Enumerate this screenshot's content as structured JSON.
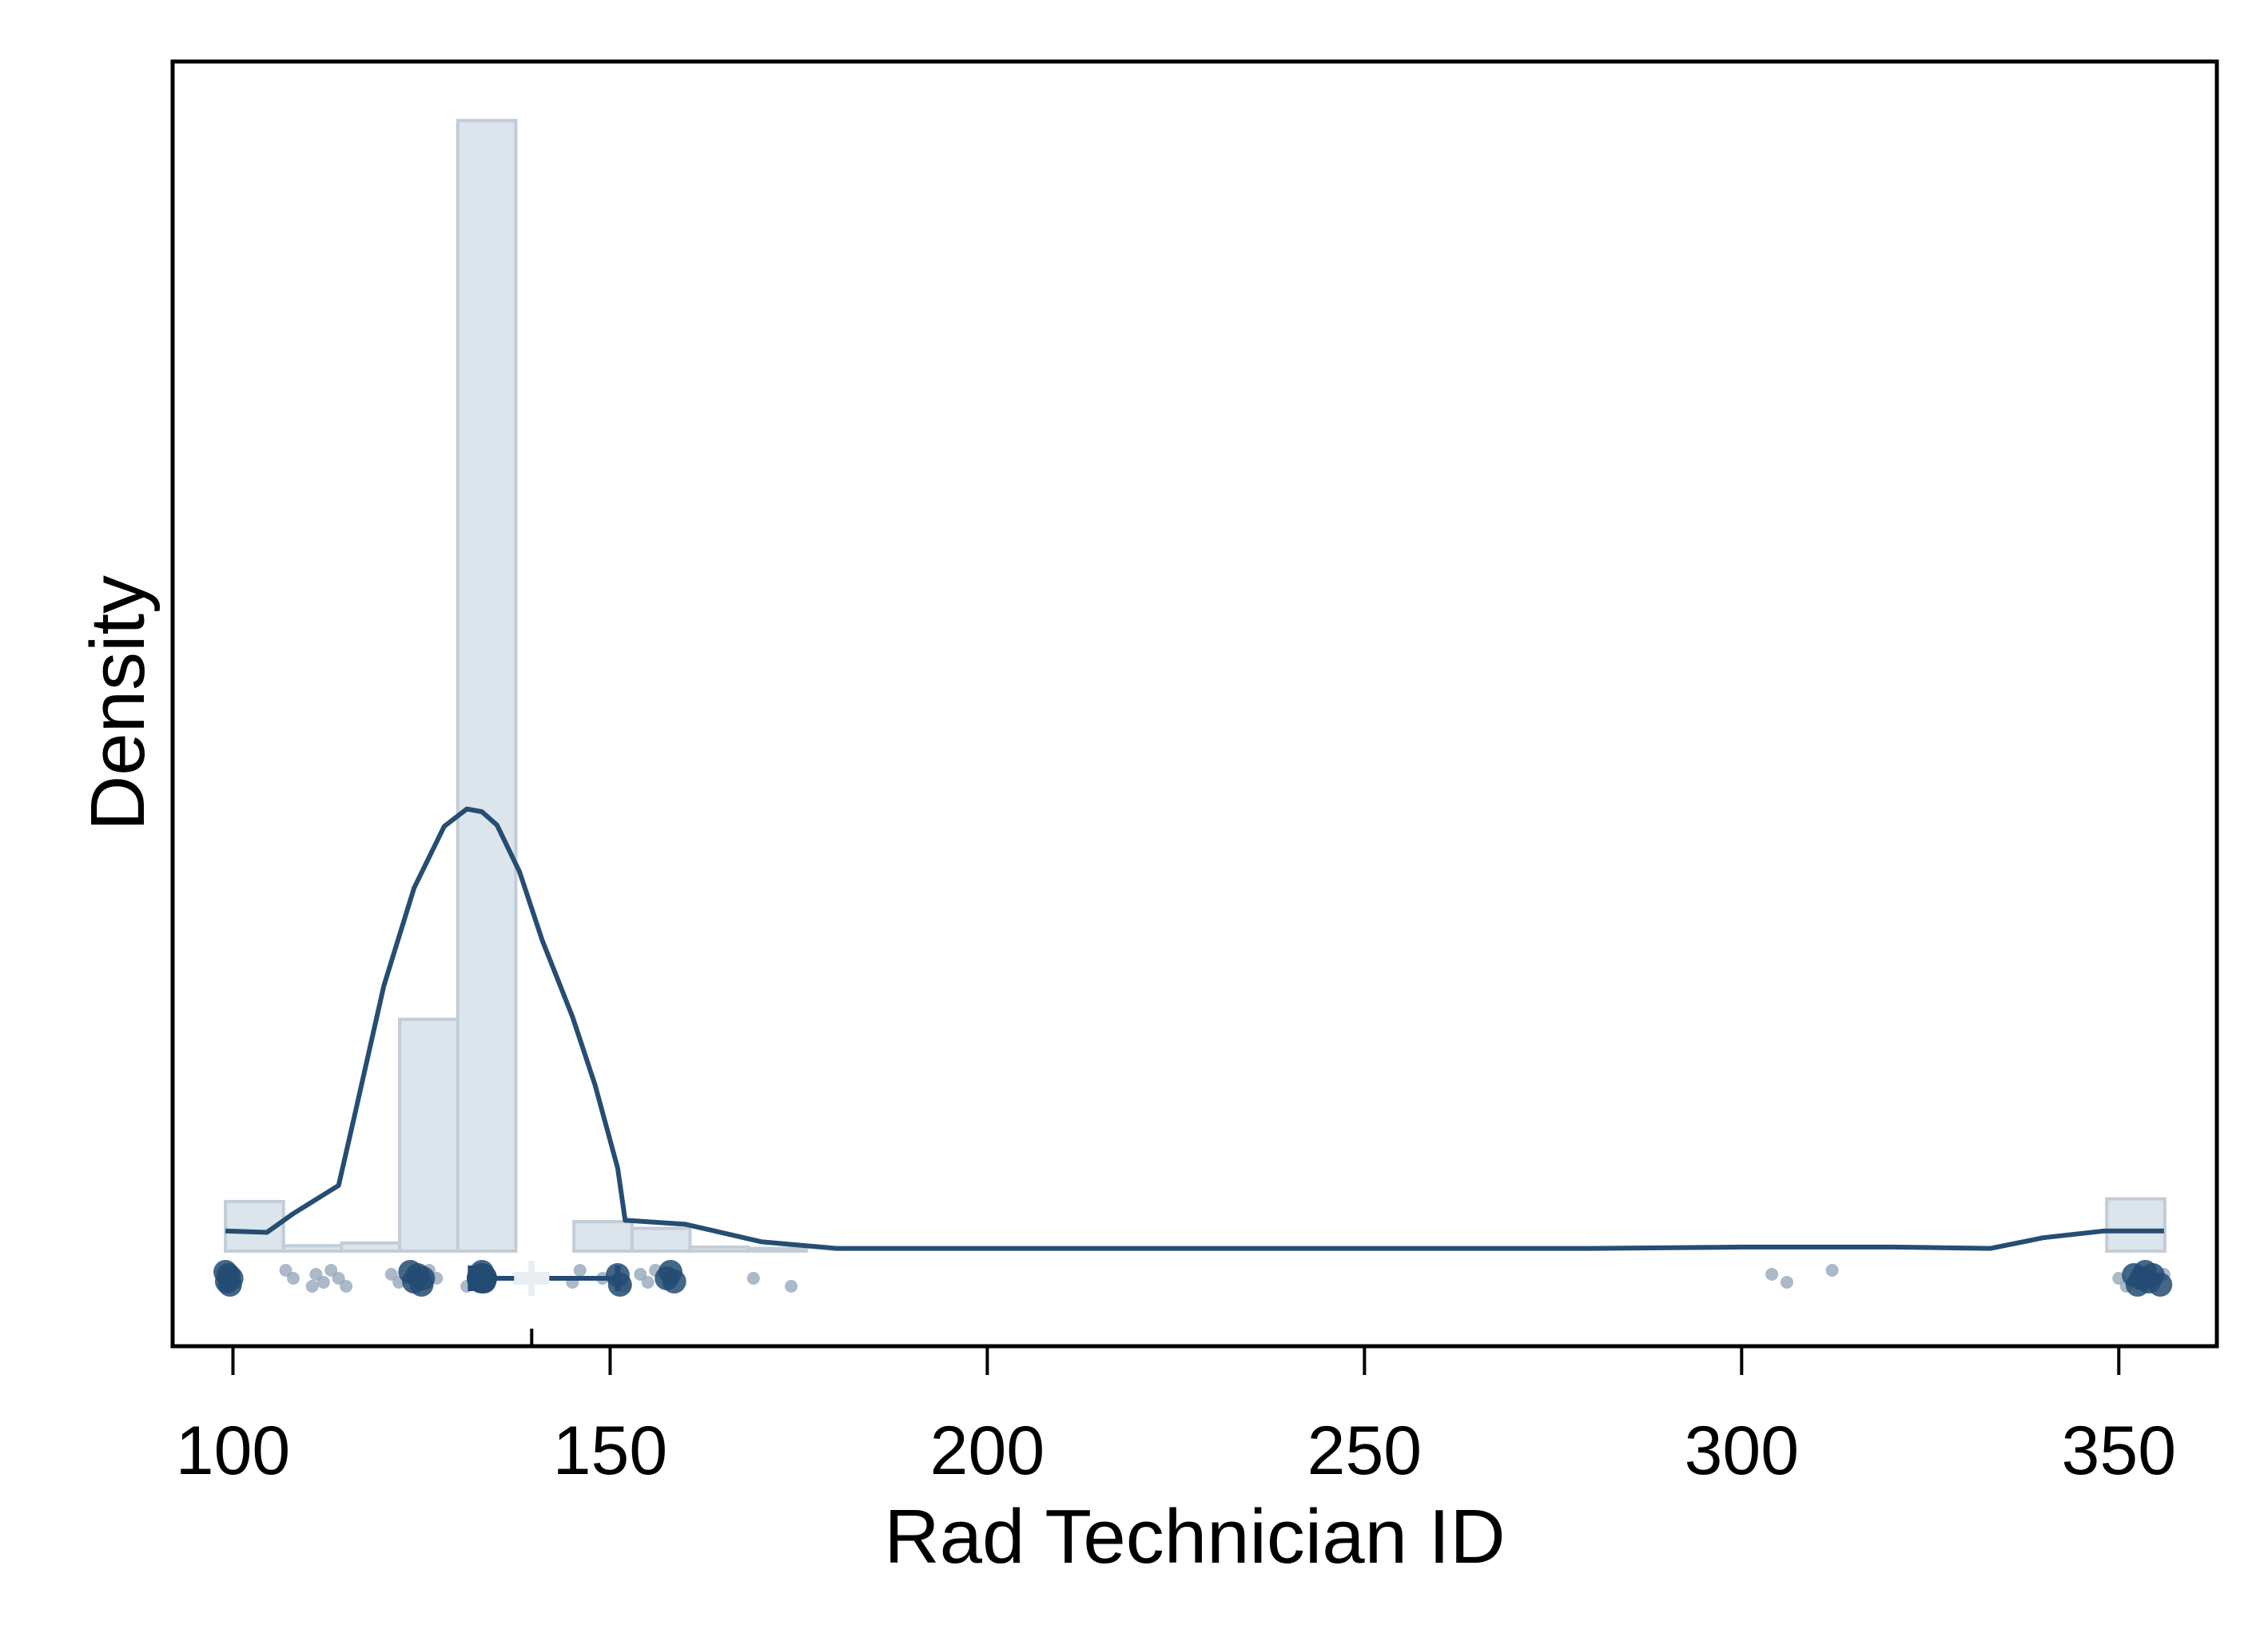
{
  "chart_data": {
    "type": "histogram",
    "title": "",
    "xlabel": "Rad Technician ID",
    "ylabel": "Density",
    "xlim": [
      92,
      363
    ],
    "ylim": [
      -0.0071,
      0.0888
    ],
    "x_ticks": [
      100,
      150,
      200,
      250,
      300,
      350
    ],
    "y_ticks_shown": false,
    "grid": false,
    "legend": "none",
    "colors": {
      "bar_fill": "#dce4ec",
      "bar_stroke": "#c2cdd8",
      "line": "#264d72",
      "point": "#234b73",
      "point_light": "#8fa2b6",
      "box_median": "#e8eef4"
    },
    "histogram": {
      "bins": [
        {
          "x0": 99,
          "x1": 106.7,
          "density": 0.0037
        },
        {
          "x0": 106.7,
          "x1": 114.4,
          "density": 0.0004
        },
        {
          "x0": 114.4,
          "x1": 122.1,
          "density": 0.0006
        },
        {
          "x0": 122.1,
          "x1": 129.8,
          "density": 0.0173
        },
        {
          "x0": 129.8,
          "x1": 137.5,
          "density": 0.0844
        },
        {
          "x0": 137.5,
          "x1": 145.2,
          "density": 0.0
        },
        {
          "x0": 145.2,
          "x1": 152.9,
          "density": 0.0022
        },
        {
          "x0": 152.9,
          "x1": 160.6,
          "density": 0.0017
        },
        {
          "x0": 160.6,
          "x1": 168.3,
          "density": 0.0003
        },
        {
          "x0": 168.3,
          "x1": 176.0,
          "density": 0.0002
        },
        {
          "x0": 348.4,
          "x1": 356.1,
          "density": 0.0039
        }
      ]
    },
    "density_curve": {
      "x": [
        99,
        104.5,
        108,
        112,
        114,
        116,
        120,
        124,
        128,
        131,
        133,
        135,
        138,
        141,
        145,
        148,
        151,
        152,
        160,
        170,
        180,
        200,
        250,
        280,
        300,
        320,
        333,
        340,
        348,
        356
      ],
      "y": [
        0.0015,
        0.0014,
        0.0028,
        0.0042,
        0.0049,
        0.0098,
        0.0198,
        0.0271,
        0.0317,
        0.033,
        0.0328,
        0.0318,
        0.0283,
        0.0232,
        0.0175,
        0.0124,
        0.0062,
        0.0023,
        0.002,
        0.0007,
        0.0002,
        0.0002,
        0.0002,
        0.0002,
        0.0003,
        0.0003,
        0.0002,
        0.001,
        0.0015,
        0.0015
      ]
    },
    "boxplot": {
      "whisker_low": 123,
      "q1": 131.5,
      "median": 139.6,
      "q3": 151,
      "whisker_high": 151,
      "mean": 133
    },
    "points": {
      "dark": [
        99,
        99.2,
        99.4,
        99.6,
        99.8,
        123.5,
        124,
        124.5,
        125,
        125.2,
        133,
        133.3,
        151,
        151.3,
        157.5,
        158,
        158.5,
        352,
        352.5,
        353,
        353.5,
        354,
        354.5,
        355.5
      ],
      "light": [
        107,
        108,
        110.5,
        111,
        112,
        113,
        114,
        115,
        121,
        122,
        126,
        127,
        131,
        132,
        145,
        146,
        149,
        152,
        154,
        155,
        156,
        169,
        174,
        304,
        306,
        312,
        350,
        351,
        356
      ]
    }
  }
}
